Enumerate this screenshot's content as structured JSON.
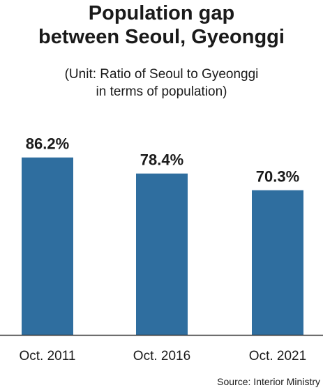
{
  "title_lines": [
    "Population gap",
    "between Seoul, Gyeonggi"
  ],
  "subtitle_lines": [
    "(Unit: Ratio of Seoul to Gyeonggi",
    "in terms of population)"
  ],
  "source": "Source: Interior Ministry",
  "colors": {
    "bar": "#2f6e9f",
    "axis": "#333333",
    "text": "#1a1a1a"
  },
  "chart_data": {
    "type": "bar",
    "title": "Population gap between Seoul, Gyeonggi",
    "subtitle": "(Unit: Ratio of Seoul to Gyeonggi in terms of population)",
    "categories": [
      "Oct. 2011",
      "Oct. 2016",
      "Oct. 2021"
    ],
    "values": [
      86.2,
      78.4,
      70.3
    ],
    "data_labels": [
      "86.2%",
      "78.4%",
      "70.3%"
    ],
    "unit": "%",
    "xlabel": "",
    "ylabel": "",
    "ylim": [
      0,
      100
    ],
    "grid": false,
    "legend": "none"
  }
}
